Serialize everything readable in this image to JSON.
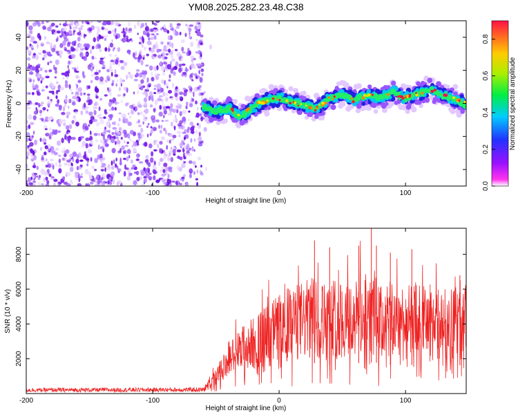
{
  "title": "YM08.2025.282.23.48.C38",
  "chart_data": [
    {
      "type": "heatmap",
      "xlabel": "Height of straight line (km)",
      "ylabel": "Frequency (Hz)",
      "xlim": [
        -200,
        148
      ],
      "ylim": [
        -50,
        50
      ],
      "xticks": [
        -200,
        -100,
        0,
        100
      ],
      "yticks": [
        -40,
        -20,
        0,
        20,
        40
      ],
      "noise_region_x": [
        -200,
        -60
      ],
      "signal_start_x": -60,
      "signal_center_freq": {
        "x": [
          -60,
          -50,
          -40,
          -30,
          -20,
          -10,
          0,
          10,
          20,
          30,
          40,
          50,
          60,
          70,
          80,
          90,
          100,
          110,
          120,
          130,
          140,
          148
        ],
        "y": [
          -2,
          -5,
          -3,
          -8,
          -2,
          2,
          3,
          1,
          -1,
          -3,
          3,
          6,
          2,
          5,
          3,
          7,
          3,
          6,
          8,
          5,
          2,
          -1
        ]
      },
      "colorbar": {
        "label": "Normalized spectral amplitude",
        "range": [
          0.0,
          0.9
        ],
        "ticks": [
          0.0,
          0.2,
          0.4,
          0.6,
          0.8
        ],
        "colors": [
          "#ff33ee",
          "#2233ff",
          "#00ccff",
          "#00ee00",
          "#ffee00",
          "#ff2200"
        ]
      }
    },
    {
      "type": "line",
      "xlabel": "Height of straight line (km)",
      "ylabel": "SNR (10 * v/v)",
      "xlim": [
        -200,
        148
      ],
      "ylim": [
        0,
        9500
      ],
      "xticks": [
        -200,
        -100,
        0,
        100
      ],
      "yticks": [
        2000,
        4000,
        6000,
        8000
      ],
      "series": [
        {
          "name": "SNR",
          "color": "#ee2222",
          "x": [
            -200,
            -60,
            -50,
            -45,
            -40,
            -35,
            -30,
            -25,
            -20,
            -15,
            -10,
            -5,
            0,
            5,
            10,
            15,
            20,
            25,
            30,
            35,
            40,
            45,
            50,
            55,
            60,
            65,
            70,
            75,
            80,
            85,
            90,
            95,
            100,
            105,
            110,
            115,
            120,
            125,
            130,
            135,
            140,
            148
          ],
          "y": [
            200,
            220,
            900,
            1400,
            2000,
            2200,
            2500,
            2700,
            2900,
            3100,
            3300,
            3500,
            3800,
            3900,
            4000,
            4100,
            4200,
            4300,
            4400,
            4200,
            4100,
            4400,
            4200,
            4300,
            4200,
            4500,
            4100,
            4700,
            4000,
            4200,
            4100,
            4300,
            4000,
            4100,
            4200,
            4000,
            4100,
            3900,
            4000,
            4100,
            4000,
            4200
          ],
          "spikes": [
            {
              "x": 28,
              "y": 8800
            },
            {
              "x": 40,
              "y": 8400
            },
            {
              "x": 63,
              "y": 8500
            },
            {
              "x": 73,
              "y": 9500
            },
            {
              "x": 77,
              "y": 8500
            },
            {
              "x": 88,
              "y": 8100
            },
            {
              "x": 105,
              "y": 8300
            },
            {
              "x": 143,
              "y": 6800
            }
          ]
        }
      ]
    }
  ]
}
